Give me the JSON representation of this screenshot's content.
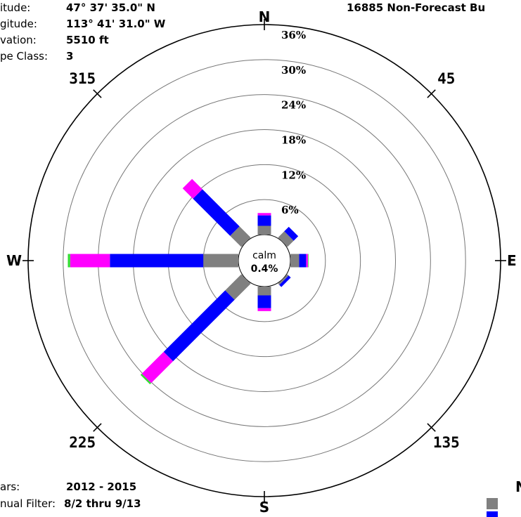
{
  "station": {
    "title": "16885 Non-Forecast Bu",
    "info": [
      {
        "label": "itude:",
        "value": "47° 37' 35.0\" N"
      },
      {
        "label": "gitude:",
        "value": "113° 41' 31.0\" W"
      },
      {
        "label": "vation:",
        "value": "5510 ft"
      },
      {
        "label": "pe Class:",
        "value": "3"
      }
    ],
    "footer": [
      {
        "label": "ars:",
        "value": "2012 - 2015"
      },
      {
        "label": "nual Filter:",
        "value": "8/2 thru 9/13"
      }
    ],
    "legend_title": "N",
    "legend_colors": [
      "#808080",
      "#0000ff"
    ]
  },
  "chart_data": {
    "type": "wind-rose",
    "directions_deg": [
      0,
      45,
      90,
      135,
      180,
      225,
      270,
      315
    ],
    "direction_labels": {
      "0": "N",
      "45": "45",
      "90": "E",
      "135": "135",
      "180": "S",
      "225": "225",
      "270": "W",
      "315": "315"
    },
    "ring_labels": [
      "6%",
      "12%",
      "18%",
      "24%",
      "30%",
      "36%"
    ],
    "ring_max_percent": 36,
    "calm": {
      "label": "calm",
      "value": "0.4%"
    },
    "speed_bins": [
      {
        "color": "#808080"
      },
      {
        "color": "#0000ff"
      },
      {
        "color": "#ff00ff"
      },
      {
        "color": "#33dd33"
      }
    ],
    "series": [
      {
        "direction": 0,
        "segments": [
          1.5,
          1.8,
          0.4,
          0
        ]
      },
      {
        "direction": 22.5,
        "segments": [
          0,
          0,
          0,
          0
        ]
      },
      {
        "direction": 45,
        "segments": [
          1.5,
          1.1,
          0,
          0
        ]
      },
      {
        "direction": 67.5,
        "segments": [
          0,
          0,
          0,
          0
        ]
      },
      {
        "direction": 90,
        "segments": [
          1.5,
          1.2,
          0.3,
          0.1
        ]
      },
      {
        "direction": 112.5,
        "segments": [
          0,
          0,
          0,
          0
        ]
      },
      {
        "direction": 135,
        "segments": [
          0.3,
          0.5,
          0,
          0
        ]
      },
      {
        "direction": 157.5,
        "segments": [
          0,
          0,
          0,
          0
        ]
      },
      {
        "direction": 180,
        "segments": [
          1.5,
          2.2,
          0.5,
          0
        ]
      },
      {
        "direction": 202.5,
        "segments": [
          0,
          0,
          0,
          0
        ]
      },
      {
        "direction": 225,
        "segments": [
          3.9,
          14.9,
          5.3,
          0.3
        ]
      },
      {
        "direction": 247.5,
        "segments": [
          0,
          0,
          0,
          0
        ]
      },
      {
        "direction": 270,
        "segments": [
          6.0,
          16.0,
          6.8,
          0.4
        ]
      },
      {
        "direction": 292.5,
        "segments": [
          0,
          0,
          0,
          0
        ]
      },
      {
        "direction": 315,
        "segments": [
          2.7,
          9.0,
          2.5,
          0
        ]
      },
      {
        "direction": 337.5,
        "segments": [
          0,
          0,
          0,
          0
        ]
      }
    ]
  }
}
